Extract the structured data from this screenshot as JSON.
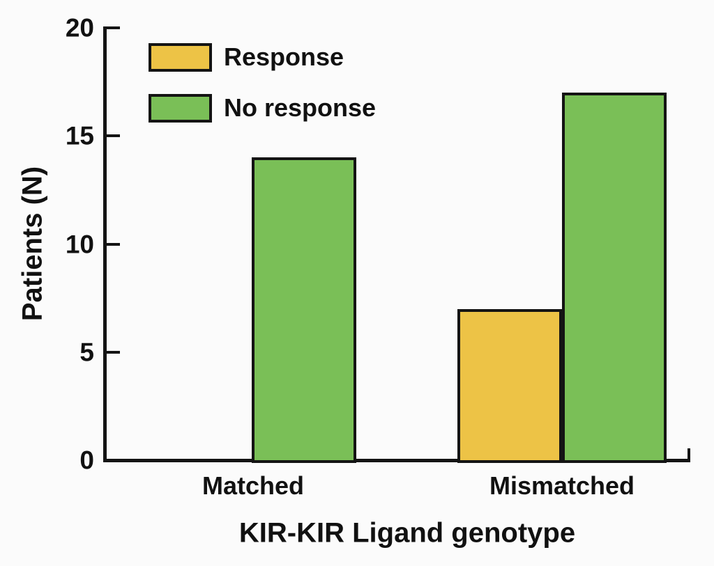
{
  "figure": {
    "background": "#fbfbfb",
    "axis_color": "#141414",
    "text_color": "#111111"
  },
  "chart_data": {
    "type": "bar",
    "title": "",
    "xlabel": "KIR-KIR Ligand genotype",
    "ylabel": "Patients (N)",
    "categories": [
      "Matched",
      "Mismatched"
    ],
    "series": [
      {
        "name": "Response",
        "color": "#EDC346",
        "values": [
          0,
          7
        ]
      },
      {
        "name": "No response",
        "color": "#7ABF57",
        "values": [
          14,
          17
        ]
      }
    ],
    "ylim": [
      0,
      20
    ],
    "yticks": [
      0,
      5,
      10,
      15,
      20
    ],
    "legend_position": "top-left",
    "grid": false
  }
}
